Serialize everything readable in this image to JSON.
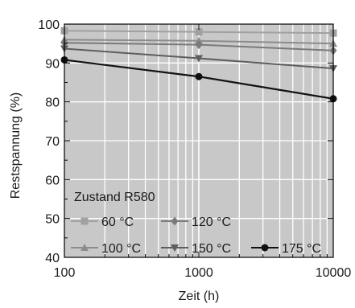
{
  "chart_data": {
    "type": "line",
    "xlabel": "Zeit (h)",
    "ylabel": "Restspannung (%)",
    "x_scale": "log",
    "xlim": [
      100,
      10000
    ],
    "ylim": [
      40,
      100
    ],
    "x_ticks": [
      100,
      1000,
      10000
    ],
    "x_tick_labels": [
      "100",
      "1000",
      "10000"
    ],
    "y_ticks": [
      40,
      50,
      60,
      70,
      80,
      90,
      100
    ],
    "y_tick_labels": [
      "40",
      "50",
      "60",
      "70",
      "80",
      "90",
      "100"
    ],
    "grid": true,
    "plot_background": "#c8c8c8",
    "grid_color": "#ffffff",
    "legend_title": "Zustand R580",
    "legend_position": "lower-left",
    "series": [
      {
        "name": "60 °C",
        "marker": "square",
        "color": "#a0a0a0",
        "x": [
          100,
          1000,
          10000
        ],
        "y": [
          98.3,
          98.0,
          97.7
        ]
      },
      {
        "name": "100 °C",
        "marker": "triangle-up",
        "color": "#8c8c8c",
        "x": [
          100,
          1000,
          10000
        ],
        "y": [
          96.0,
          95.7,
          95.0
        ]
      },
      {
        "name": "120 °C",
        "marker": "diamond",
        "color": "#7a7a7a",
        "x": [
          100,
          1000,
          10000
        ],
        "y": [
          95.2,
          94.7,
          93.2
        ]
      },
      {
        "name": "150 °C",
        "marker": "triangle-down",
        "color": "#5e5e5e",
        "x": [
          100,
          1000,
          10000
        ],
        "y": [
          93.7,
          91.2,
          88.6
        ]
      },
      {
        "name": "175 °C",
        "marker": "circle",
        "color": "#111111",
        "x": [
          100,
          1000,
          10000
        ],
        "y": [
          90.8,
          86.5,
          80.8
        ]
      }
    ]
  }
}
